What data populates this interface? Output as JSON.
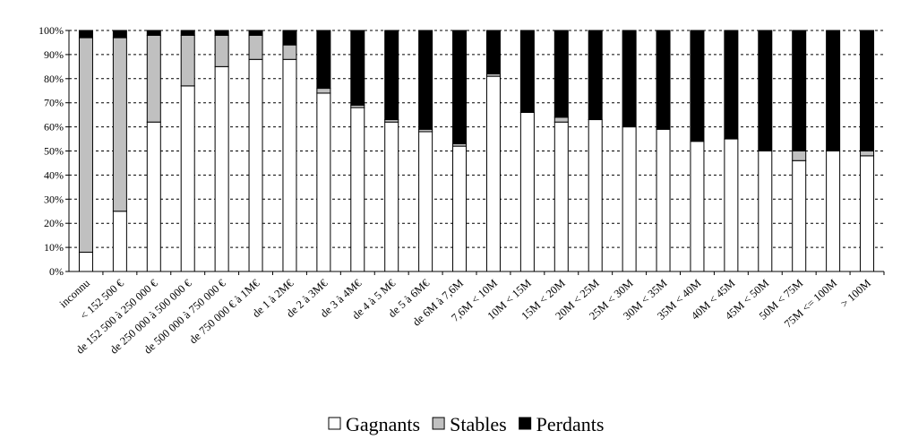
{
  "chart_data": {
    "type": "bar",
    "stacked": "percent",
    "categories": [
      "inconnu",
      "< 152 500 €",
      "de 152 500 à 250 000 €",
      "de 250 000 à 500 000 €",
      "de 500 000 à 750 000 €",
      "de 750 000 € à 1M€",
      "de 1 à 2M€",
      "de 2 à 3M€",
      "de 3 à 4M€",
      "de 4 à 5 M€",
      "de 5 à 6M€",
      "de 6M à 7,6M",
      "7,6M < 10M",
      "10M < 15M",
      "15M < 20M",
      "20M < 25M",
      "25M < 30M",
      "30M < 35M",
      "35M < 40M",
      "40M < 45M",
      "45M < 50M",
      "50M < 75M",
      "75M <= 100M",
      "> 100M"
    ],
    "series": [
      {
        "name": "Gagnants",
        "color": "#ffffff",
        "values": [
          8,
          25,
          62,
          77,
          85,
          88,
          88,
          74,
          68,
          62,
          58,
          52,
          81,
          66,
          62,
          63,
          60,
          59,
          54,
          55,
          50,
          46,
          50,
          48
        ]
      },
      {
        "name": "Stables",
        "color": "#c0c0c0",
        "values": [
          89,
          72,
          36,
          21,
          13,
          10,
          6,
          2,
          1,
          1,
          1,
          1,
          1,
          0,
          2,
          0,
          0,
          0,
          0,
          0,
          0,
          4,
          0,
          2
        ]
      },
      {
        "name": "Perdants",
        "color": "#000000",
        "values": [
          3,
          3,
          2,
          2,
          2,
          2,
          6,
          24,
          31,
          37,
          41,
          47,
          18,
          34,
          36,
          37,
          40,
          41,
          46,
          45,
          50,
          50,
          50,
          50
        ]
      }
    ],
    "yticks": [
      "0%",
      "10%",
      "20%",
      "30%",
      "40%",
      "50%",
      "60%",
      "70%",
      "80%",
      "90%",
      "100%"
    ],
    "ylim": [
      0,
      100
    ],
    "grid": "horizontal dashed",
    "legend_position": "bottom",
    "title": "",
    "xlabel": "",
    "ylabel": ""
  }
}
